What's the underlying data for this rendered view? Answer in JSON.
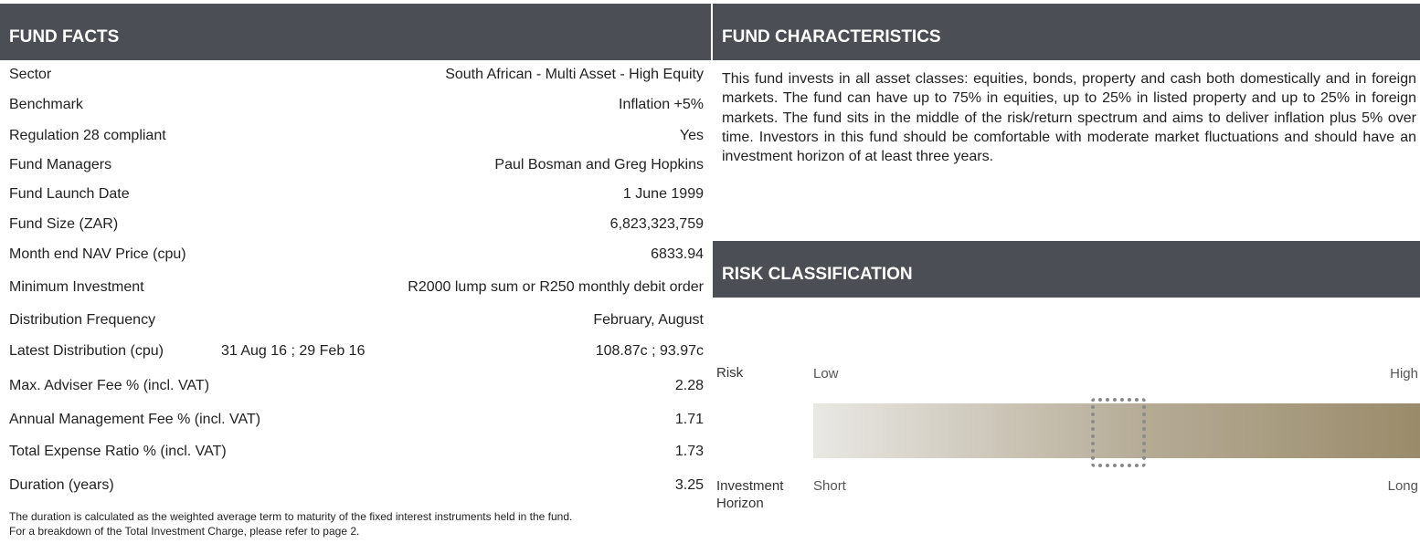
{
  "fund_facts": {
    "title": "FUND FACTS",
    "rows": [
      {
        "label": "Sector",
        "value": "South African - Multi Asset - High Equity"
      },
      {
        "label": "Benchmark",
        "value": "Inflation +5%"
      },
      {
        "label": "Regulation 28 compliant",
        "value": "Yes"
      },
      {
        "label": "Fund Managers",
        "value": "Paul Bosman and Greg Hopkins"
      },
      {
        "label": "Fund Launch Date",
        "value": "1 June 1999"
      },
      {
        "label": "Fund Size (ZAR)",
        "value": "6,823,323,759"
      },
      {
        "label": "Month end NAV Price (cpu)",
        "value": "6833.94"
      },
      {
        "label": "Minimum Investment",
        "value": "R2000 lump sum or R250 monthly debit order"
      },
      {
        "label": "Distribution Frequency",
        "value": "February, August"
      },
      {
        "label": "Latest Distribution (cpu)",
        "dates": "31 Aug 16 ; 29 Feb 16",
        "value": "108.87c ; 93.97c"
      },
      {
        "label": "Max. Adviser Fee % (incl. VAT)",
        "value": "2.28"
      },
      {
        "label": "Annual Management Fee % (incl. VAT)",
        "value": "1.71"
      },
      {
        "label": "Total Expense Ratio % (incl. VAT)",
        "value": "1.73"
      },
      {
        "label": "Duration (years)",
        "value": "3.25"
      }
    ],
    "notes": [
      "The duration is calculated as the weighted average term to maturity of the fixed interest instruments held in the fund.",
      "For a breakdown of the Total Investment Charge, please refer to page 2."
    ]
  },
  "fund_characteristics": {
    "title": "FUND CHARACTERISTICS",
    "text": "This fund invests in all asset classes: equities, bonds, property and cash both domestically and in foreign markets. The fund can have up to 75% in equities, up to 25% in listed property and up to 25% in foreign markets. The fund sits in the middle of the risk/return spectrum and aims to deliver inflation plus 5% over time. Investors in this fund should be comfortable with moderate market fluctuations and should have an investment horizon of at least three years."
  },
  "risk_classification": {
    "title": "RISK CLASSIFICATION",
    "risk_label": "Risk",
    "low": "Low",
    "high": "High",
    "horizon_label": "Investment Horizon",
    "short": "Short",
    "long": "Long"
  }
}
